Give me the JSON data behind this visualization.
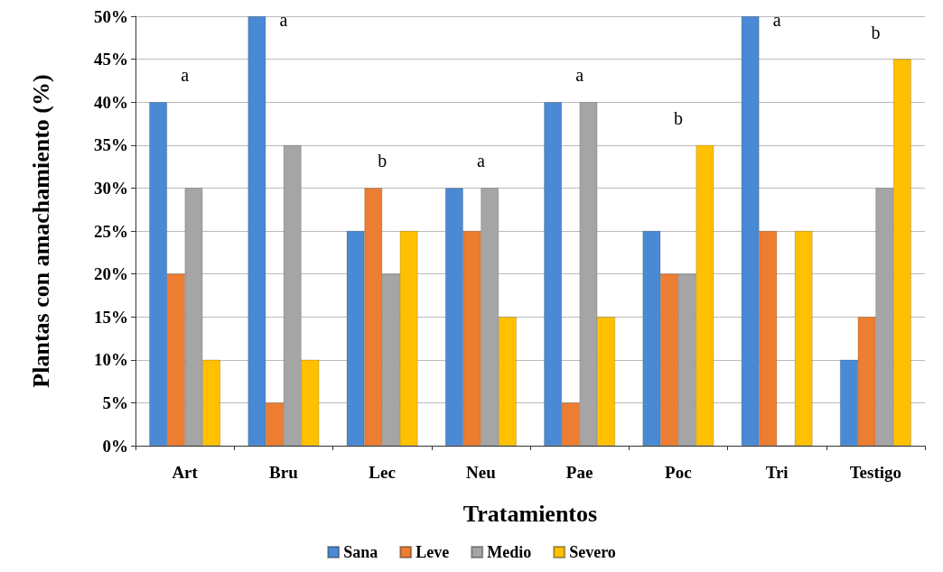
{
  "chart_data": {
    "type": "bar",
    "xlabel": "Tratamientos",
    "ylabel": "Plantas con amachamiento (%)",
    "categories": [
      "Art",
      "Bru",
      "Lec",
      "Neu",
      "Pae",
      "Poc",
      "Tri",
      "Testigo"
    ],
    "series": [
      {
        "name": "Sana",
        "color": "#4a8ad4",
        "values": [
          40,
          50,
          25,
          30,
          40,
          25,
          50,
          10
        ]
      },
      {
        "name": "Leve",
        "color": "#ed7d31",
        "values": [
          20,
          5,
          30,
          25,
          5,
          20,
          25,
          15
        ]
      },
      {
        "name": "Medio",
        "color": "#a5a5a5",
        "values": [
          30,
          35,
          20,
          30,
          40,
          20,
          0,
          30
        ]
      },
      {
        "name": "Severo",
        "color": "#ffc000",
        "values": [
          10,
          10,
          25,
          15,
          15,
          35,
          25,
          45
        ]
      }
    ],
    "ylim": [
      0,
      50
    ],
    "yticks": [
      {
        "value": 0,
        "label": "0%"
      },
      {
        "value": 5,
        "label": "5%"
      },
      {
        "value": 10,
        "label": "10%"
      },
      {
        "value": 15,
        "label": "15%"
      },
      {
        "value": 20,
        "label": "20%"
      },
      {
        "value": 25,
        "label": "25%"
      },
      {
        "value": 30,
        "label": "30%"
      },
      {
        "value": 35,
        "label": "35%"
      },
      {
        "value": 40,
        "label": "40%"
      },
      {
        "value": 45,
        "label": "45%"
      },
      {
        "value": 50,
        "label": "50%"
      }
    ],
    "annotations": [
      "a",
      "a",
      "b",
      "a",
      "a",
      "b",
      "a",
      "b"
    ],
    "grid": true,
    "legend": "bottom"
  }
}
